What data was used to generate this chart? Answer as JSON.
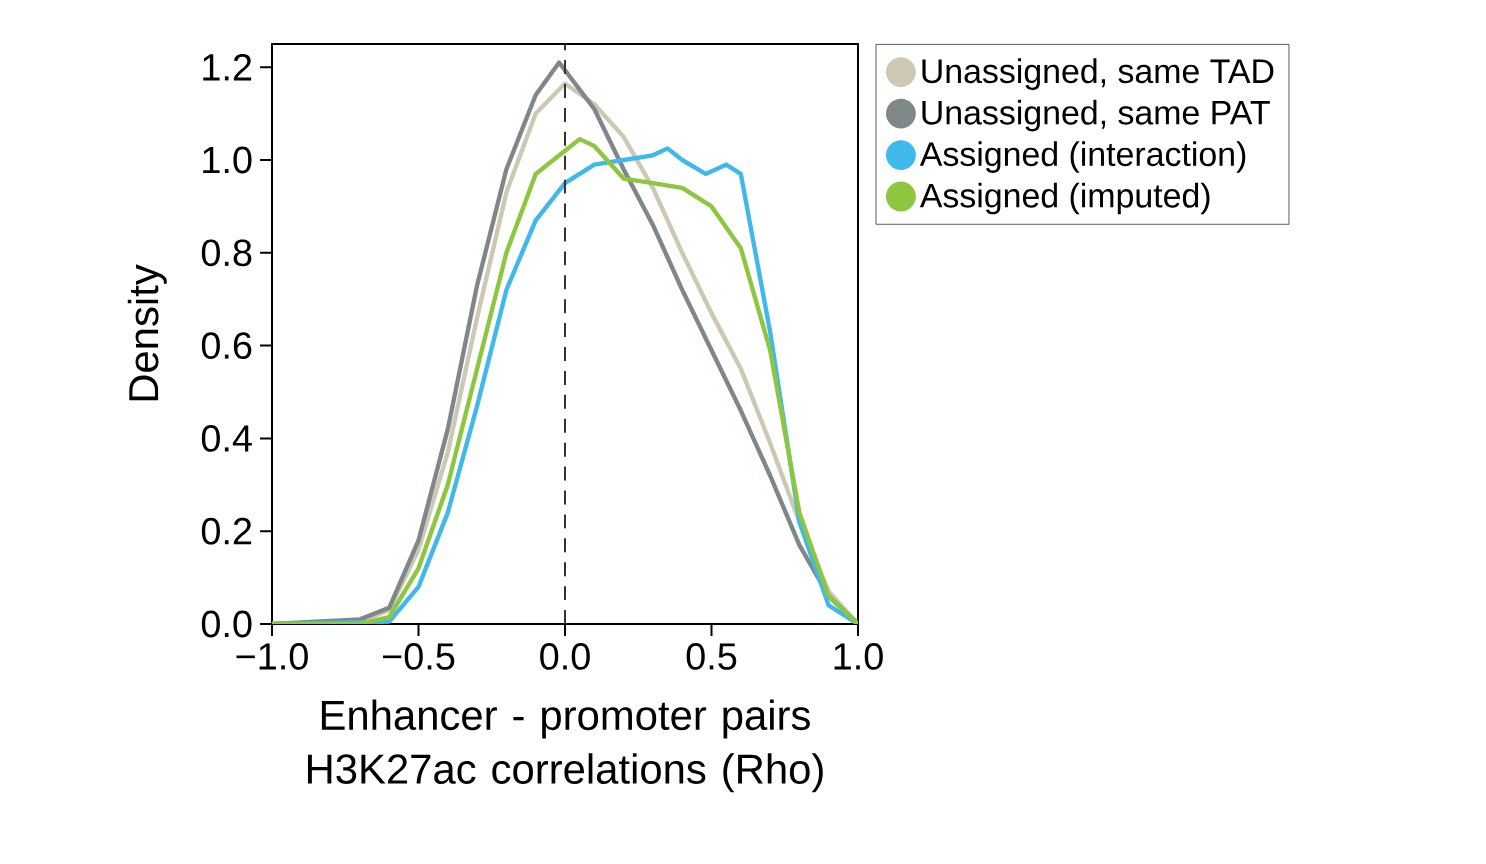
{
  "chart_data": {
    "type": "line",
    "xlabel": "Enhancer - promoter pairs H3K27ac correlations (Rho)",
    "ylabel": "Density",
    "xlim": [
      -1,
      1
    ],
    "ylim": [
      0,
      1.25
    ],
    "xticks": [
      {
        "value": -1,
        "label": "−1.0"
      },
      {
        "value": -0.5,
        "label": "−0.5"
      },
      {
        "value": 0,
        "label": "0.0"
      },
      {
        "value": 0.5,
        "label": "0.5"
      },
      {
        "value": 1,
        "label": "1.0"
      }
    ],
    "yticks": [
      {
        "value": 0,
        "label": "0.0"
      },
      {
        "value": 0.2,
        "label": "0.2"
      },
      {
        "value": 0.4,
        "label": "0.4"
      },
      {
        "value": 0.6,
        "label": "0.6"
      },
      {
        "value": 0.8,
        "label": "0.8"
      },
      {
        "value": 1.0,
        "label": "1.0"
      },
      {
        "value": 1.2,
        "label": "1.2"
      }
    ],
    "legend": "right",
    "ref_lines": [
      {
        "axis": "x",
        "value": 0,
        "line_style": "dashed",
        "color": "#333333"
      }
    ],
    "series": [
      {
        "name": "Unassigned, same TAD",
        "color": "#cdc8b4",
        "x": [
          -1,
          -0.7,
          -0.6,
          -0.5,
          -0.4,
          -0.3,
          -0.2,
          -0.1,
          0,
          0.1,
          0.2,
          0.3,
          0.4,
          0.5,
          0.6,
          0.7,
          0.8,
          0.9,
          1
        ],
        "values": [
          0,
          0.005,
          0.03,
          0.16,
          0.37,
          0.66,
          0.93,
          1.1,
          1.165,
          1.12,
          1.05,
          0.94,
          0.8,
          0.67,
          0.55,
          0.39,
          0.22,
          0.07,
          0
        ]
      },
      {
        "name": "Unassigned, same PAT",
        "color": "#7f8788",
        "x": [
          -1,
          -0.7,
          -0.6,
          -0.5,
          -0.4,
          -0.3,
          -0.2,
          -0.1,
          -0.02,
          0.1,
          0.2,
          0.3,
          0.4,
          0.5,
          0.6,
          0.7,
          0.8,
          0.9,
          1
        ],
        "values": [
          0,
          0.01,
          0.035,
          0.18,
          0.42,
          0.73,
          0.98,
          1.14,
          1.21,
          1.11,
          0.98,
          0.86,
          0.72,
          0.59,
          0.46,
          0.32,
          0.17,
          0.06,
          0
        ]
      },
      {
        "name": "Assigned (interaction)",
        "color": "#3fb9ea",
        "x": [
          -1,
          -0.6,
          -0.5,
          -0.4,
          -0.3,
          -0.2,
          -0.1,
          0,
          0.1,
          0.2,
          0.3,
          0.35,
          0.4,
          0.48,
          0.55,
          0.6,
          0.7,
          0.8,
          0.9,
          1
        ],
        "values": [
          0,
          0.005,
          0.08,
          0.24,
          0.47,
          0.72,
          0.87,
          0.95,
          0.99,
          1.0,
          1.01,
          1.025,
          1.0,
          0.97,
          0.99,
          0.97,
          0.63,
          0.22,
          0.04,
          0
        ]
      },
      {
        "name": "Assigned (imputed)",
        "color": "#8dc63f",
        "x": [
          -1,
          -0.7,
          -0.6,
          -0.5,
          -0.4,
          -0.3,
          -0.2,
          -0.1,
          0,
          0.05,
          0.1,
          0.2,
          0.3,
          0.4,
          0.5,
          0.6,
          0.7,
          0.8,
          0.9,
          1
        ],
        "values": [
          0,
          0,
          0.015,
          0.12,
          0.3,
          0.55,
          0.8,
          0.97,
          1.02,
          1.045,
          1.03,
          0.96,
          0.95,
          0.94,
          0.9,
          0.81,
          0.59,
          0.24,
          0.06,
          0
        ]
      }
    ]
  }
}
